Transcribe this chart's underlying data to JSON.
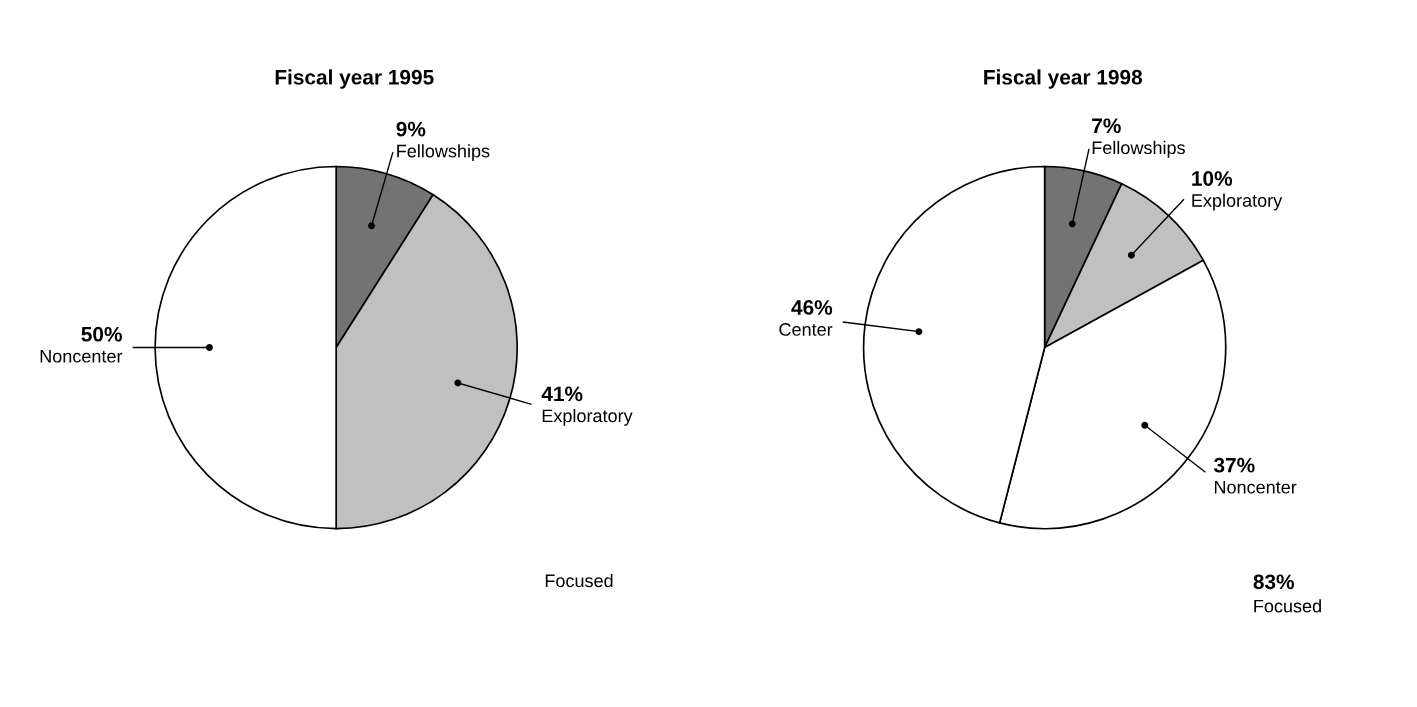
{
  "chart_data": [
    {
      "type": "pie",
      "title": "Fiscal year 1995",
      "categories": [
        "Fellowships",
        "Exploratory",
        "Noncenter"
      ],
      "values": [
        9,
        41,
        50
      ],
      "value_labels": [
        "9%",
        "41%",
        "50%"
      ],
      "colors": [
        "#737373",
        "#c0c0c0",
        "#ffffff"
      ],
      "annotations": [
        "Focused"
      ]
    },
    {
      "type": "pie",
      "title": "Fiscal year 1998",
      "categories": [
        "Fellowships",
        "Exploratory",
        "Noncenter",
        "Center"
      ],
      "values": [
        7,
        10,
        37,
        46
      ],
      "value_labels": [
        "7%",
        "10%",
        "37%",
        "46%"
      ],
      "colors": [
        "#737373",
        "#c0c0c0",
        "#ffffff",
        "#ffffff"
      ],
      "annotations": [
        "83%",
        "Focused"
      ]
    }
  ]
}
